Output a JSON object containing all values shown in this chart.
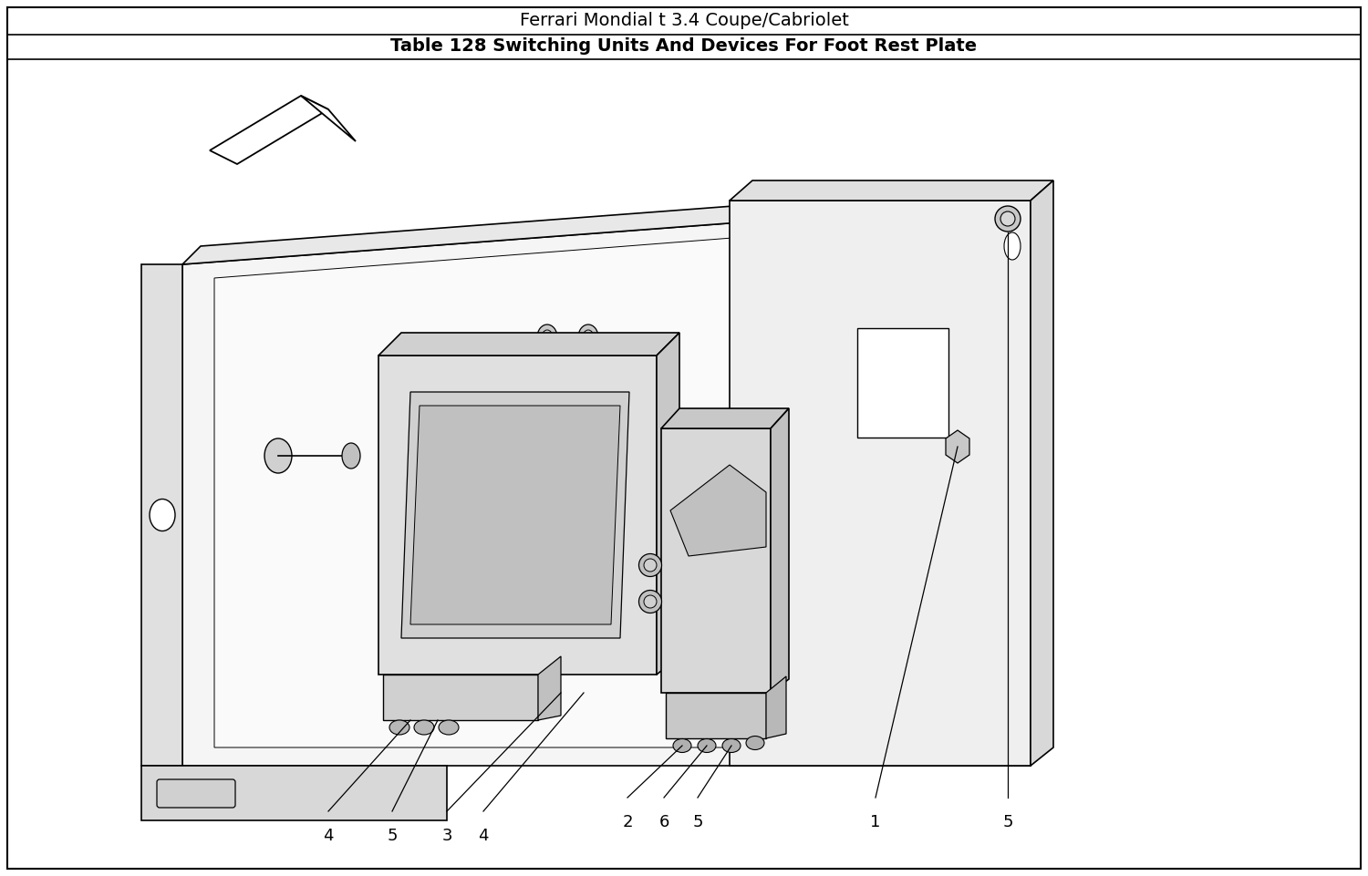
{
  "title1": "Ferrari Mondial t 3.4 Coupe/Cabriolet",
  "title2": "Table 128 Switching Units And Devices For Foot Rest Plate",
  "background_color": "#ffffff",
  "title1_fontsize": 14,
  "title2_fontsize": 14,
  "label_fontsize": 13,
  "line_color": "#000000",
  "fill_light": "#f0f0f0",
  "fill_mid": "#d8d8d8",
  "fill_dark": "#b8b8b8"
}
